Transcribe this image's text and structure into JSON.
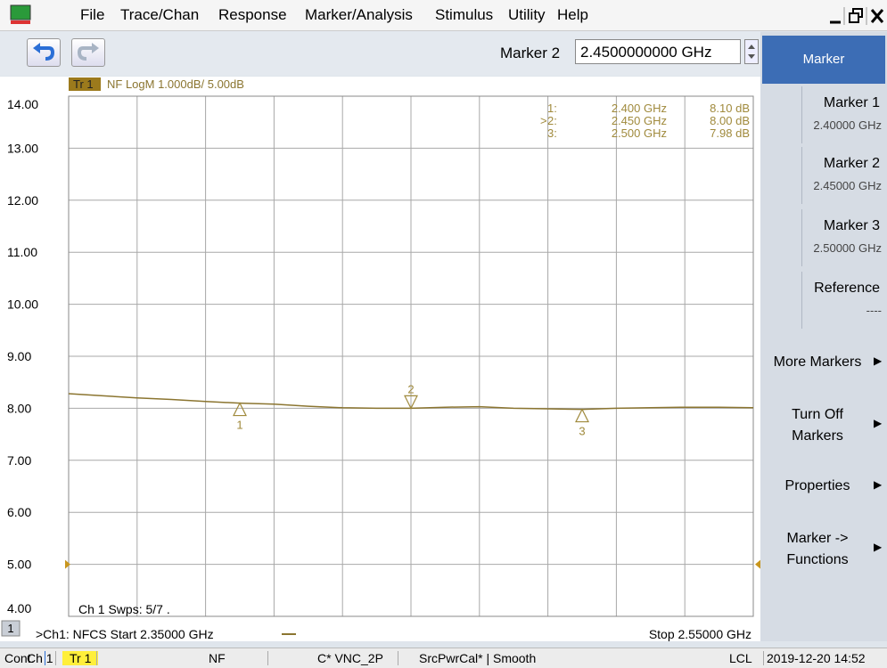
{
  "menu": {
    "items": [
      "File",
      "Trace/Chan",
      "Response",
      "Marker/Analysis",
      "Stimulus",
      "Utility",
      "Help"
    ]
  },
  "toolbar": {
    "marker_label": "Marker 2",
    "marker_value": "2.4500000000 GHz"
  },
  "chart_data": {
    "type": "line",
    "trace_name": "Tr 1",
    "trace_format": "NF LogM 1.000dB/ 5.00dB",
    "channel_info": "Ch 1 Swps: 5/7 .",
    "ylim": [
      4,
      14
    ],
    "yticks": [
      {
        "value": 14,
        "label": "14.00"
      },
      {
        "value": 13,
        "label": "13.00"
      },
      {
        "value": 12,
        "label": "12.00"
      },
      {
        "value": 11,
        "label": "11.00"
      },
      {
        "value": 10,
        "label": "10.00"
      },
      {
        "value": 9,
        "label": "9.00"
      },
      {
        "value": 8,
        "label": "8.00"
      },
      {
        "value": 7,
        "label": "7.00"
      },
      {
        "value": 6,
        "label": "6.00"
      },
      {
        "value": 5,
        "label": "5.00"
      },
      {
        "value": 4,
        "label": "4.00"
      }
    ],
    "xlim": [
      2.35,
      2.55
    ],
    "grid": true,
    "reference_level": 5,
    "x": [
      2.35,
      2.36,
      2.37,
      2.38,
      2.39,
      2.4,
      2.41,
      2.42,
      2.43,
      2.44,
      2.45,
      2.46,
      2.47,
      2.48,
      2.49,
      2.5,
      2.51,
      2.52,
      2.53,
      2.54,
      2.55
    ],
    "series": [
      {
        "name": "Tr 1",
        "color": "#8b7530",
        "values": [
          8.28,
          8.24,
          8.2,
          8.17,
          8.13,
          8.1,
          8.08,
          8.04,
          8.01,
          8.0,
          8.0,
          8.02,
          8.03,
          8.0,
          7.99,
          7.98,
          8.0,
          8.01,
          8.02,
          8.02,
          8.01
        ]
      }
    ],
    "active_symbol": ">",
    "markers": [
      {
        "label": "1",
        "table_label": "1:",
        "x": 2.4,
        "value": 8.1,
        "freq_label": "2.400 GHz",
        "value_label": "8.10 dB",
        "active": false
      },
      {
        "label": "2",
        "table_label": "2:",
        "x": 2.45,
        "value": 8.0,
        "freq_label": "2.450 GHz",
        "value_label": "8.00 dB",
        "active": true
      },
      {
        "label": "3",
        "table_label": "3:",
        "x": 2.5,
        "value": 7.98,
        "freq_label": "2.500 GHz",
        "value_label": "7.98 dB",
        "active": false
      }
    ]
  },
  "footer": {
    "channel": "1",
    "start": ">Ch1: NFCS  Start 2.35000 GHz",
    "stop": "Stop 2.55000 GHz"
  },
  "softkeys": {
    "header": "Marker",
    "buttons": [
      {
        "title": "Marker 1",
        "subtitle": "2.40000 GHz"
      },
      {
        "title": "Marker 2",
        "subtitle": "2.45000 GHz"
      },
      {
        "title": "Marker 3",
        "subtitle": "2.50000 GHz"
      },
      {
        "title": "Reference",
        "subtitle": "----"
      },
      {
        "title": "More Markers"
      },
      {
        "title": "Turn Off",
        "subtitle": "Markers"
      },
      {
        "title": "Properties"
      },
      {
        "title": "Marker ->",
        "subtitle": "Functions"
      }
    ]
  },
  "status": {
    "items": [
      "Cont.",
      "Ch 1",
      "Tr 1",
      "NF",
      "C* VNC_2P",
      "SrcPwrCal* | Smooth",
      "LCL",
      "2019-12-20 14:52"
    ]
  }
}
